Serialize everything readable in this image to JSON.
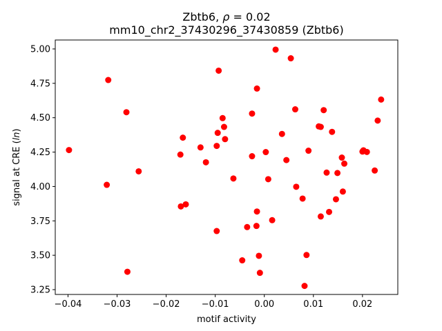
{
  "chart_data": {
    "type": "scatter",
    "title_line1_prefix": "Zbtb6, ",
    "title_line1_rho": "ρ",
    "title_line1_suffix": " = 0.02",
    "title_line2": "mm10_chr2_37430296_37430859 (Zbtb6)",
    "xlabel": "motif activity",
    "ylabel_prefix": "signal at CRE (",
    "ylabel_italic": "ln",
    "ylabel_suffix": ")",
    "xlim": [
      -0.0426,
      0.0272
    ],
    "ylim": [
      3.215,
      5.065
    ],
    "x_ticks": [
      -0.04,
      -0.03,
      -0.02,
      -0.01,
      0.0,
      0.01,
      0.02
    ],
    "x_tick_labels": [
      "−0.04",
      "−0.03",
      "−0.02",
      "−0.01",
      "0.00",
      "0.01",
      "0.02"
    ],
    "y_ticks": [
      3.25,
      3.5,
      3.75,
      4.0,
      4.25,
      4.5,
      4.75,
      5.0
    ],
    "y_tick_labels": [
      "3.25",
      "3.50",
      "3.75",
      "4.00",
      "4.25",
      "4.50",
      "4.75",
      "5.00"
    ],
    "grid": false,
    "marker_color": "#ff0000",
    "points": [
      {
        "x": -0.0398,
        "y": 4.265
      },
      {
        "x": -0.0318,
        "y": 4.774
      },
      {
        "x": -0.0321,
        "y": 4.012
      },
      {
        "x": -0.0281,
        "y": 4.54
      },
      {
        "x": -0.0279,
        "y": 3.38
      },
      {
        "x": -0.0256,
        "y": 4.11
      },
      {
        "x": -0.0171,
        "y": 4.232
      },
      {
        "x": -0.0166,
        "y": 4.355
      },
      {
        "x": -0.017,
        "y": 3.855
      },
      {
        "x": -0.016,
        "y": 3.87
      },
      {
        "x": -0.013,
        "y": 4.284
      },
      {
        "x": -0.0119,
        "y": 4.176
      },
      {
        "x": -0.0097,
        "y": 4.295
      },
      {
        "x": -0.0095,
        "y": 4.39
      },
      {
        "x": -0.0093,
        "y": 4.842
      },
      {
        "x": -0.0097,
        "y": 3.676
      },
      {
        "x": -0.0085,
        "y": 4.497
      },
      {
        "x": -0.0082,
        "y": 4.433
      },
      {
        "x": -0.008,
        "y": 4.344
      },
      {
        "x": -0.0063,
        "y": 4.058
      },
      {
        "x": -0.0045,
        "y": 3.463
      },
      {
        "x": -0.0035,
        "y": 3.705
      },
      {
        "x": -0.0025,
        "y": 4.53
      },
      {
        "x": -0.0025,
        "y": 4.22
      },
      {
        "x": -0.0015,
        "y": 4.712
      },
      {
        "x": -0.0015,
        "y": 3.818
      },
      {
        "x": -0.0016,
        "y": 3.713
      },
      {
        "x": -0.0011,
        "y": 3.496
      },
      {
        "x": -0.0009,
        "y": 3.372
      },
      {
        "x": 0.0003,
        "y": 4.25
      },
      {
        "x": 0.0008,
        "y": 4.053
      },
      {
        "x": 0.0016,
        "y": 3.755
      },
      {
        "x": 0.0023,
        "y": 4.995
      },
      {
        "x": 0.0036,
        "y": 4.382
      },
      {
        "x": 0.0045,
        "y": 4.192
      },
      {
        "x": 0.0054,
        "y": 4.932
      },
      {
        "x": 0.0063,
        "y": 4.561
      },
      {
        "x": 0.0065,
        "y": 3.998
      },
      {
        "x": 0.0078,
        "y": 3.912
      },
      {
        "x": 0.0082,
        "y": 3.277
      },
      {
        "x": 0.0086,
        "y": 3.502
      },
      {
        "x": 0.009,
        "y": 4.26
      },
      {
        "x": 0.0111,
        "y": 4.437
      },
      {
        "x": 0.0115,
        "y": 4.433
      },
      {
        "x": 0.0115,
        "y": 3.782
      },
      {
        "x": 0.0121,
        "y": 4.555
      },
      {
        "x": 0.0127,
        "y": 4.101
      },
      {
        "x": 0.0132,
        "y": 3.815
      },
      {
        "x": 0.0138,
        "y": 4.397
      },
      {
        "x": 0.0146,
        "y": 3.907
      },
      {
        "x": 0.0149,
        "y": 4.098
      },
      {
        "x": 0.0158,
        "y": 4.21
      },
      {
        "x": 0.016,
        "y": 3.963
      },
      {
        "x": 0.0163,
        "y": 4.166
      },
      {
        "x": 0.02,
        "y": 4.254
      },
      {
        "x": 0.0202,
        "y": 4.263
      },
      {
        "x": 0.0209,
        "y": 4.251
      },
      {
        "x": 0.0225,
        "y": 4.116
      },
      {
        "x": 0.0231,
        "y": 4.479
      },
      {
        "x": 0.0238,
        "y": 4.632
      }
    ]
  }
}
